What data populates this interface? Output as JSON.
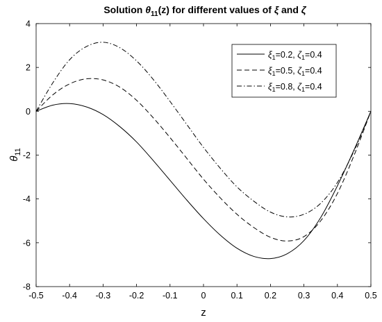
{
  "chart_data": {
    "type": "line",
    "title": {
      "prefix": "Solution ",
      "theta": "θ",
      "theta_sub": "11",
      "middle": "(z) for different values of ",
      "xi": "ξ",
      "and": " and ",
      "zeta": "ζ"
    },
    "xlabel": "z",
    "ylabel": {
      "symbol": "θ",
      "sub": "11"
    },
    "xlim": [
      -0.5,
      0.5
    ],
    "ylim": [
      -8,
      4
    ],
    "xticks": [
      -0.5,
      -0.4,
      -0.3,
      -0.2,
      -0.1,
      0,
      0.1,
      0.2,
      0.3,
      0.4,
      0.5
    ],
    "xtick_labels": [
      "-0.5",
      "-0.4",
      "-0.3",
      "-0.2",
      "-0.1",
      "0",
      "0.1",
      "0.2",
      "0.3",
      "0.4",
      "0.5"
    ],
    "yticks": [
      -8,
      -6,
      -4,
      -2,
      0,
      2,
      4
    ],
    "ytick_labels": [
      "-8",
      "-6",
      "-4",
      "-2",
      "0",
      "2",
      "4"
    ],
    "grid": false,
    "legend_position": "top-right",
    "x": [
      -0.5,
      -0.45,
      -0.4,
      -0.35,
      -0.3,
      -0.25,
      -0.2,
      -0.15,
      -0.1,
      -0.05,
      0,
      0.05,
      0.1,
      0.15,
      0.2,
      0.25,
      0.3,
      0.35,
      0.4,
      0.45,
      0.5
    ],
    "series": [
      {
        "legend": {
          "xi": "ξ",
          "xi_sub": "1",
          "xi_val": "=0.2, ",
          "zeta": "ζ",
          "zeta_sub": "1",
          "zeta_val": "=0.4"
        },
        "style": "solid",
        "color": "#000000",
        "values": [
          0,
          0.28,
          0.35,
          0.2,
          -0.15,
          -0.7,
          -1.4,
          -2.25,
          -3.15,
          -4.05,
          -4.9,
          -5.65,
          -6.25,
          -6.62,
          -6.72,
          -6.5,
          -5.9,
          -4.85,
          -3.4,
          -1.75,
          0
        ]
      },
      {
        "legend": {
          "xi": "ξ",
          "xi_sub": "1",
          "xi_val": "=0.5, ",
          "zeta": "ζ",
          "zeta_sub": "1",
          "zeta_val": "=0.4"
        },
        "style": "dashed",
        "color": "#000000",
        "values": [
          0,
          0.75,
          1.25,
          1.48,
          1.43,
          1.1,
          0.5,
          -0.3,
          -1.2,
          -2.15,
          -3.1,
          -3.95,
          -4.7,
          -5.3,
          -5.75,
          -5.92,
          -5.72,
          -5.0,
          -3.75,
          -2.0,
          0
        ]
      },
      {
        "legend": {
          "xi": "ξ",
          "xi_sub": "1",
          "xi_val": "=0.8, ",
          "zeta": "ζ",
          "zeta_sub": "1",
          "zeta_val": "=0.4"
        },
        "style": "dashdot",
        "color": "#000000",
        "values": [
          0,
          1.3,
          2.35,
          2.95,
          3.15,
          2.9,
          2.3,
          1.45,
          0.45,
          -0.6,
          -1.65,
          -2.6,
          -3.45,
          -4.1,
          -4.6,
          -4.82,
          -4.7,
          -4.2,
          -3.25,
          -1.8,
          0
        ]
      }
    ]
  }
}
